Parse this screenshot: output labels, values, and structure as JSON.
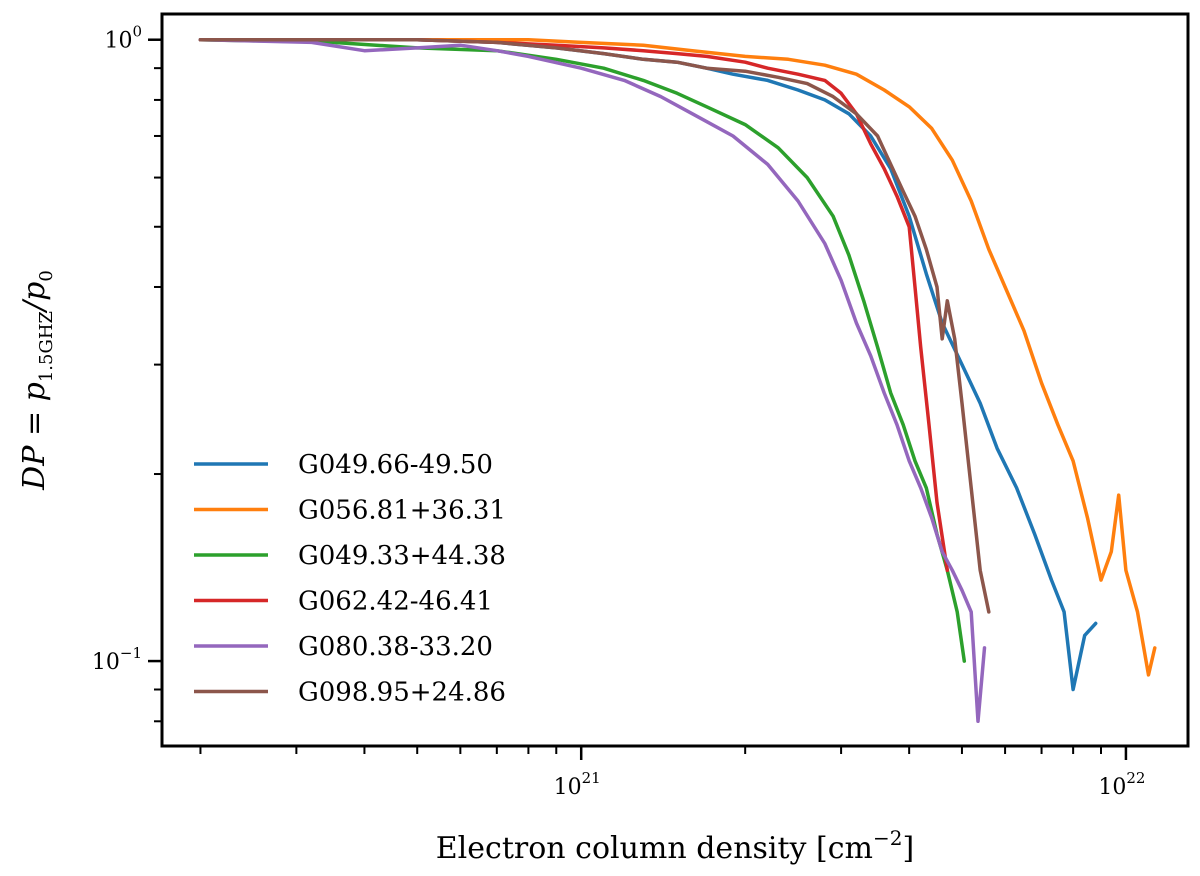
{
  "chart_data": {
    "type": "line",
    "xscale": "log",
    "yscale": "log",
    "xlim": [
      1.7e+20,
      1.3e+22
    ],
    "ylim": [
      0.073,
      1.1
    ],
    "xlabel_text": "Electron column density [cm",
    "xlabel_sup": "−2",
    "xlabel_close": "]",
    "ylabel_text": "DP = p",
    "ylabel_sub": "1.5GHZ",
    "ylabel_rest": "/p",
    "ylabel_sub2": "0",
    "x_ticks": [
      {
        "base": "10",
        "exp": "21",
        "value": 1e+21
      },
      {
        "base": "10",
        "exp": "22",
        "value": 1e+22
      }
    ],
    "y_ticks": [
      {
        "base": "10",
        "exp": "0",
        "value": 1.0
      },
      {
        "base": "10",
        "exp": "−1",
        "value": 0.1
      }
    ],
    "legend_position": "lower-left",
    "grid": false,
    "series": [
      {
        "name": "G049.66-49.50",
        "color": "#1f77b4",
        "x": [
          2e+20,
          5e+20,
          7e+20,
          9e+20,
          1.1e+21,
          1.3e+21,
          1.5e+21,
          1.7e+21,
          1.9e+21,
          2.2e+21,
          2.5e+21,
          2.8e+21,
          3.1e+21,
          3.4e+21,
          3.7e+21,
          4e+21,
          4.3e+21,
          4.6e+21,
          5e+21,
          5.4e+21,
          5.8e+21,
          6.3e+21,
          6.8e+21,
          7.3e+21,
          7.7e+21,
          8e+21,
          8.4e+21,
          8.8e+21
        ],
        "y": [
          1.0,
          1.0,
          0.99,
          0.97,
          0.95,
          0.93,
          0.92,
          0.9,
          0.88,
          0.86,
          0.83,
          0.8,
          0.76,
          0.7,
          0.62,
          0.52,
          0.42,
          0.35,
          0.3,
          0.26,
          0.22,
          0.19,
          0.16,
          0.135,
          0.12,
          0.09,
          0.11,
          0.115
        ]
      },
      {
        "name": "G056.81+36.31",
        "color": "#ff7f0e",
        "x": [
          2e+20,
          5e+20,
          8e+20,
          1e+21,
          1.3e+21,
          1.6e+21,
          2e+21,
          2.4e+21,
          2.8e+21,
          3.2e+21,
          3.6e+21,
          4e+21,
          4.4e+21,
          4.8e+21,
          5.2e+21,
          5.6e+21,
          6e+21,
          6.5e+21,
          7e+21,
          7.5e+21,
          8e+21,
          8.5e+21,
          9e+21,
          9.4e+21,
          9.7e+21,
          1e+22,
          1.05e+22,
          1.1e+22,
          1.13e+22
        ],
        "y": [
          1.0,
          1.0,
          1.0,
          0.99,
          0.98,
          0.96,
          0.94,
          0.93,
          0.91,
          0.88,
          0.83,
          0.78,
          0.72,
          0.64,
          0.55,
          0.46,
          0.4,
          0.34,
          0.28,
          0.24,
          0.21,
          0.17,
          0.135,
          0.15,
          0.185,
          0.14,
          0.12,
          0.095,
          0.105
        ]
      },
      {
        "name": "G049.33+44.38",
        "color": "#2ca02c",
        "x": [
          2e+20,
          3.5e+20,
          5e+20,
          7e+20,
          9e+20,
          1.1e+21,
          1.3e+21,
          1.5e+21,
          1.7e+21,
          2e+21,
          2.3e+21,
          2.6e+21,
          2.9e+21,
          3.1e+21,
          3.3e+21,
          3.5e+21,
          3.7e+21,
          3.9e+21,
          4.1e+21,
          4.3e+21,
          4.5e+21,
          4.7e+21,
          4.9e+21,
          5.05e+21
        ],
        "y": [
          1.0,
          0.99,
          0.97,
          0.96,
          0.93,
          0.9,
          0.86,
          0.82,
          0.78,
          0.73,
          0.67,
          0.6,
          0.52,
          0.45,
          0.38,
          0.32,
          0.27,
          0.24,
          0.21,
          0.19,
          0.16,
          0.14,
          0.12,
          0.1
        ]
      },
      {
        "name": "G062.42-46.41",
        "color": "#d62728",
        "x": [
          2e+20,
          5e+20,
          7e+20,
          9e+20,
          1.1e+21,
          1.3e+21,
          1.5e+21,
          1.7e+21,
          2e+21,
          2.2e+21,
          2.5e+21,
          2.8e+21,
          3e+21,
          3.2e+21,
          3.4e+21,
          3.6e+21,
          3.8e+21,
          4e+21,
          4.1e+21,
          4.2e+21,
          4.35e+21,
          4.5e+21,
          4.7e+21
        ],
        "y": [
          1.0,
          1.0,
          0.99,
          0.98,
          0.97,
          0.96,
          0.95,
          0.94,
          0.92,
          0.9,
          0.88,
          0.86,
          0.82,
          0.76,
          0.68,
          0.62,
          0.56,
          0.5,
          0.4,
          0.32,
          0.24,
          0.18,
          0.14
        ]
      },
      {
        "name": "G080.38-33.20",
        "color": "#9467bd",
        "x": [
          2e+20,
          3.2e+20,
          4e+20,
          5e+20,
          6e+20,
          7e+20,
          8e+20,
          1e+21,
          1.2e+21,
          1.4e+21,
          1.6e+21,
          1.9e+21,
          2.2e+21,
          2.5e+21,
          2.8e+21,
          3e+21,
          3.2e+21,
          3.4e+21,
          3.6e+21,
          3.8e+21,
          4e+21,
          4.2e+21,
          4.4e+21,
          4.6e+21,
          4.8e+21,
          5e+21,
          5.2e+21,
          5.35e+21,
          5.5e+21
        ],
        "y": [
          1.0,
          0.99,
          0.96,
          0.97,
          0.98,
          0.96,
          0.94,
          0.9,
          0.86,
          0.81,
          0.76,
          0.7,
          0.63,
          0.55,
          0.47,
          0.41,
          0.35,
          0.31,
          0.27,
          0.24,
          0.21,
          0.19,
          0.17,
          0.15,
          0.14,
          0.13,
          0.12,
          0.08,
          0.105
        ]
      },
      {
        "name": "G098.95+24.86",
        "color": "#8c564b",
        "x": [
          2e+20,
          5e+20,
          7e+20,
          9e+20,
          1.1e+21,
          1.3e+21,
          1.5e+21,
          1.7e+21,
          2e+21,
          2.3e+21,
          2.6e+21,
          2.9e+21,
          3.2e+21,
          3.5e+21,
          3.7e+21,
          3.9e+21,
          4.1e+21,
          4.3e+21,
          4.5e+21,
          4.6e+21,
          4.7e+21,
          4.85e+21,
          5e+21,
          5.2e+21,
          5.4e+21,
          5.6e+21
        ],
        "y": [
          1.0,
          1.0,
          0.99,
          0.97,
          0.95,
          0.93,
          0.92,
          0.9,
          0.89,
          0.87,
          0.85,
          0.81,
          0.76,
          0.7,
          0.63,
          0.57,
          0.52,
          0.46,
          0.4,
          0.33,
          0.38,
          0.33,
          0.26,
          0.19,
          0.14,
          0.12
        ]
      }
    ]
  }
}
